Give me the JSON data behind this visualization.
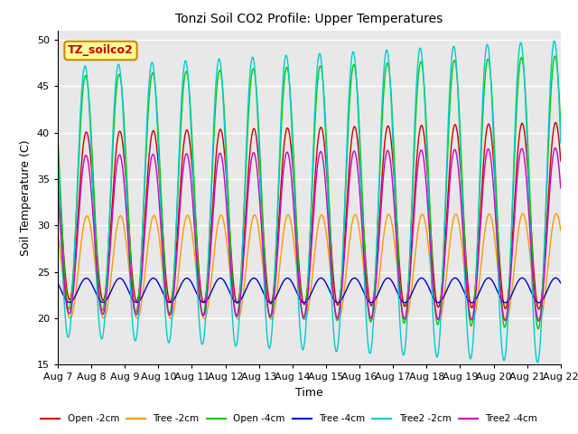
{
  "title": "Tonzi Soil CO2 Profile: Upper Temperatures",
  "xlabel": "Time",
  "ylabel": "Soil Temperature (C)",
  "ylim": [
    15,
    51
  ],
  "yticks": [
    15,
    20,
    25,
    30,
    35,
    40,
    45,
    50
  ],
  "annotation_text": "TZ_soilco2",
  "annotation_box_color": "#ffff99",
  "annotation_box_edge": "#cc8800",
  "annotation_text_color": "#cc0000",
  "x_start_day": 7,
  "x_end_day": 22,
  "n_points": 3600,
  "series": [
    {
      "label": "Open -2cm",
      "color": "#cc0000",
      "mean": 31.0,
      "amp": 9.0,
      "phase": 0.6,
      "amp_trend": 0.12
    },
    {
      "label": "Tree -2cm",
      "color": "#ff9900",
      "mean": 25.5,
      "amp": 5.5,
      "phase": 0.62,
      "amp_trend": 0.05
    },
    {
      "label": "Open -4cm",
      "color": "#00cc00",
      "mean": 33.5,
      "amp": 12.5,
      "phase": 0.58,
      "amp_trend": 0.18
    },
    {
      "label": "Tree -4cm",
      "color": "#0000cc",
      "mean": 23.0,
      "amp": 1.3,
      "phase": 0.6,
      "amp_trend": 0.03
    },
    {
      "label": "Tree2 -2cm",
      "color": "#00cccc",
      "mean": 32.5,
      "amp": 14.5,
      "phase": 0.56,
      "amp_trend": 0.2
    },
    {
      "label": "Tree2 -4cm",
      "color": "#cc00cc",
      "mean": 29.0,
      "amp": 8.5,
      "phase": 0.59,
      "amp_trend": 0.1
    }
  ],
  "background_color": "#ffffff",
  "plot_bg_color": "#e8e8e8",
  "grid_color": "#ffffff",
  "xtick_labels": [
    "Aug 7",
    "Aug 8",
    "Aug 9",
    "Aug 10",
    "Aug 11",
    "Aug 12",
    "Aug 13",
    "Aug 14",
    "Aug 15",
    "Aug 16",
    "Aug 17",
    "Aug 18",
    "Aug 19",
    "Aug 20",
    "Aug 21",
    "Aug 22"
  ],
  "xtick_positions": [
    7,
    8,
    9,
    10,
    11,
    12,
    13,
    14,
    15,
    16,
    17,
    18,
    19,
    20,
    21,
    22
  ]
}
